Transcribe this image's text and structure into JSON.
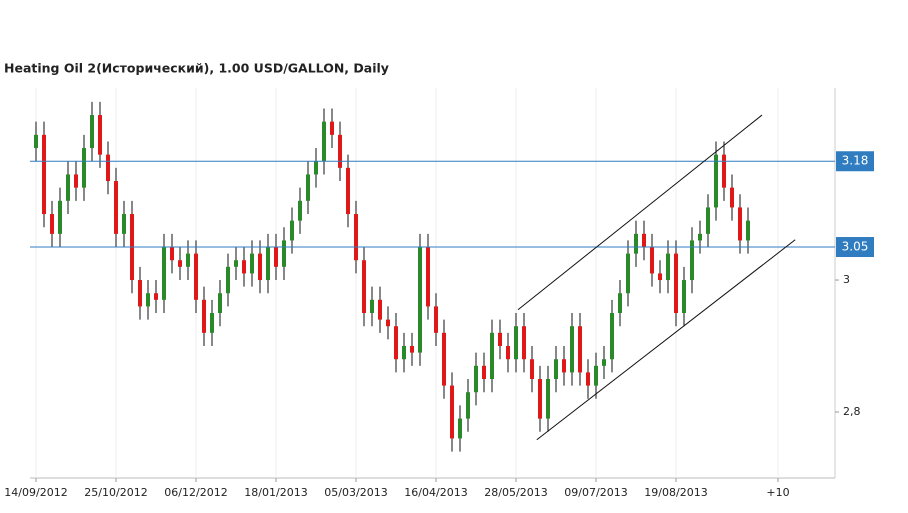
{
  "chart_data": {
    "type": "candlestick",
    "title": "Heating Oil 2(Исторический), 1.00 USD/GALLON, Daily",
    "open": [
      3.2,
      3.22,
      3.1,
      3.07,
      3.12,
      3.16,
      3.14,
      3.2,
      3.25,
      3.19,
      3.15,
      3.07,
      3.1,
      3.0,
      2.96,
      2.98,
      2.97,
      3.05,
      3.03,
      3.02,
      3.04,
      2.97,
      2.92,
      2.95,
      2.98,
      3.02,
      3.03,
      3.01,
      3.04,
      3.0,
      3.05,
      3.02,
      3.06,
      3.09,
      3.12,
      3.16,
      3.18,
      3.24,
      3.22,
      3.17,
      3.1,
      3.03,
      2.95,
      2.97,
      2.94,
      2.93,
      2.88,
      2.9,
      2.89,
      3.05,
      2.96,
      2.92,
      2.84,
      2.76,
      2.79,
      2.83,
      2.87,
      2.85,
      2.92,
      2.9,
      2.88,
      2.93,
      2.88,
      2.85,
      2.79,
      2.85,
      2.88,
      2.86,
      2.93,
      2.86,
      2.84,
      2.87,
      2.88,
      2.95,
      2.98,
      3.04,
      3.07,
      3.05,
      3.01,
      3.0,
      3.04,
      2.95,
      3.0,
      3.06,
      3.07,
      3.11,
      3.19,
      3.14,
      3.11,
      3.06
    ],
    "high": [
      3.24,
      3.24,
      3.12,
      3.14,
      3.18,
      3.18,
      3.22,
      3.27,
      3.27,
      3.21,
      3.17,
      3.12,
      3.12,
      3.02,
      3.0,
      3.0,
      3.07,
      3.07,
      3.05,
      3.06,
      3.06,
      2.99,
      2.97,
      3.0,
      3.04,
      3.05,
      3.05,
      3.06,
      3.06,
      3.07,
      3.07,
      3.08,
      3.11,
      3.14,
      3.18,
      3.2,
      3.26,
      3.26,
      3.24,
      3.19,
      3.12,
      3.05,
      2.99,
      2.99,
      2.96,
      2.95,
      2.92,
      2.92,
      3.07,
      3.07,
      2.98,
      2.94,
      2.86,
      2.81,
      2.85,
      2.89,
      2.89,
      2.94,
      2.94,
      2.92,
      2.95,
      2.95,
      2.9,
      2.87,
      2.87,
      2.9,
      2.9,
      2.95,
      2.95,
      2.88,
      2.89,
      2.9,
      2.97,
      3.0,
      3.06,
      3.09,
      3.09,
      3.07,
      3.03,
      3.06,
      3.06,
      3.02,
      3.08,
      3.09,
      3.13,
      3.21,
      3.21,
      3.16,
      3.13,
      3.11
    ],
    "low": [
      3.18,
      3.08,
      3.05,
      3.05,
      3.1,
      3.12,
      3.12,
      3.18,
      3.17,
      3.13,
      3.05,
      3.05,
      2.98,
      2.94,
      2.94,
      2.95,
      2.95,
      3.01,
      3.0,
      3.0,
      2.95,
      2.9,
      2.9,
      2.93,
      2.96,
      3.0,
      2.99,
      2.99,
      2.98,
      2.98,
      3.0,
      3.0,
      3.04,
      3.07,
      3.1,
      3.14,
      3.16,
      3.2,
      3.15,
      3.08,
      3.01,
      2.93,
      2.93,
      2.92,
      2.91,
      2.86,
      2.86,
      2.87,
      2.87,
      2.94,
      2.9,
      2.82,
      2.74,
      2.74,
      2.77,
      2.81,
      2.83,
      2.83,
      2.88,
      2.86,
      2.86,
      2.86,
      2.83,
      2.77,
      2.77,
      2.83,
      2.84,
      2.84,
      2.84,
      2.82,
      2.82,
      2.85,
      2.86,
      2.93,
      2.96,
      3.02,
      3.03,
      2.99,
      2.98,
      2.98,
      2.93,
      2.93,
      2.98,
      3.04,
      3.05,
      3.09,
      3.12,
      3.09,
      3.04,
      3.04
    ],
    "close": [
      3.22,
      3.1,
      3.07,
      3.12,
      3.16,
      3.14,
      3.2,
      3.25,
      3.19,
      3.15,
      3.07,
      3.1,
      3.0,
      2.96,
      2.98,
      2.97,
      3.05,
      3.03,
      3.02,
      3.04,
      2.97,
      2.92,
      2.95,
      2.98,
      3.02,
      3.03,
      3.01,
      3.04,
      3.0,
      3.05,
      3.02,
      3.06,
      3.09,
      3.12,
      3.16,
      3.18,
      3.24,
      3.22,
      3.17,
      3.1,
      3.03,
      2.95,
      2.97,
      2.94,
      2.93,
      2.88,
      2.9,
      2.89,
      3.05,
      2.96,
      2.92,
      2.84,
      2.76,
      2.79,
      2.83,
      2.87,
      2.85,
      2.92,
      2.9,
      2.88,
      2.93,
      2.88,
      2.85,
      2.79,
      2.85,
      2.88,
      2.86,
      2.93,
      2.86,
      2.84,
      2.87,
      2.88,
      2.95,
      2.98,
      3.04,
      3.07,
      3.05,
      3.01,
      3.0,
      3.04,
      2.95,
      3.0,
      3.06,
      3.07,
      3.11,
      3.19,
      3.14,
      3.11,
      3.06,
      3.09
    ],
    "up_color": "#2a8a2a",
    "down_color": "#e01818",
    "xlim": [
      -0.75,
      99.875
    ],
    "ylim": [
      2.7,
      3.291
    ],
    "x_labels": [
      {
        "value": 0,
        "label": "14/09/2012"
      },
      {
        "value": 10,
        "label": "25/10/2012"
      },
      {
        "value": 20,
        "label": "06/12/2012"
      },
      {
        "value": 30,
        "label": "18/01/2013"
      },
      {
        "value": 40,
        "label": "05/03/2013"
      },
      {
        "value": 50,
        "label": "16/04/2013"
      },
      {
        "value": 60,
        "label": "28/05/2013"
      },
      {
        "value": 70,
        "label": "09/07/2013"
      },
      {
        "value": 80,
        "label": "19/08/2013"
      },
      {
        "value": 92.75,
        "label": "+10"
      }
    ],
    "yticks": [
      3,
      {
        "value": 2.8,
        "label": "2,8"
      }
    ],
    "levels": [
      3.18,
      3.05
    ],
    "level_color": "#2f7cc0",
    "trendlines": [
      {
        "x": [
          60.25,
          90.75
        ],
        "y": [
          2.955,
          3.25
        ]
      },
      {
        "x": [
          62.6,
          94.9
        ],
        "y": [
          2.758,
          3.061
        ]
      }
    ]
  }
}
